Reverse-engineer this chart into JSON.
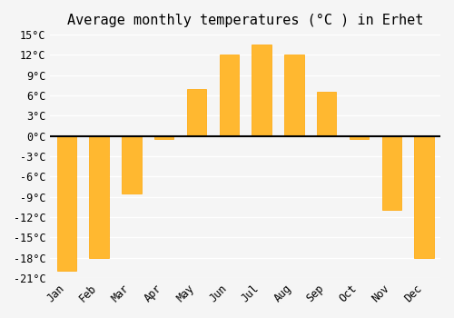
{
  "months": [
    "Jan",
    "Feb",
    "Mar",
    "Apr",
    "May",
    "Jun",
    "Jul",
    "Aug",
    "Sep",
    "Oct",
    "Nov",
    "Dec"
  ],
  "values": [
    -20,
    -18,
    -8.5,
    -0.5,
    7,
    12,
    13.5,
    12,
    6.5,
    -0.5,
    -11,
    -18
  ],
  "bar_color": "#FFA500",
  "bar_color_gradient_top": "#FFD070",
  "title": "Average monthly temperatures (°C ) in Erhet",
  "ylim": [
    -21,
    15
  ],
  "yticks": [
    -21,
    -18,
    -15,
    -12,
    -9,
    -6,
    -3,
    0,
    3,
    6,
    9,
    12,
    15
  ],
  "ytick_labels": [
    "-21°C",
    "-18°C",
    "-15°C",
    "-12°C",
    "-9°C",
    "-6°C",
    "-3°C",
    "0°C",
    "3°C",
    "6°C",
    "9°C",
    "12°C",
    "15°C"
  ],
  "background_color": "#f5f5f5",
  "grid_color": "#ffffff",
  "bar_edge_color": "#cc8800",
  "zero_line_color": "#000000",
  "title_fontsize": 11,
  "tick_fontsize": 8.5,
  "font_family": "monospace"
}
